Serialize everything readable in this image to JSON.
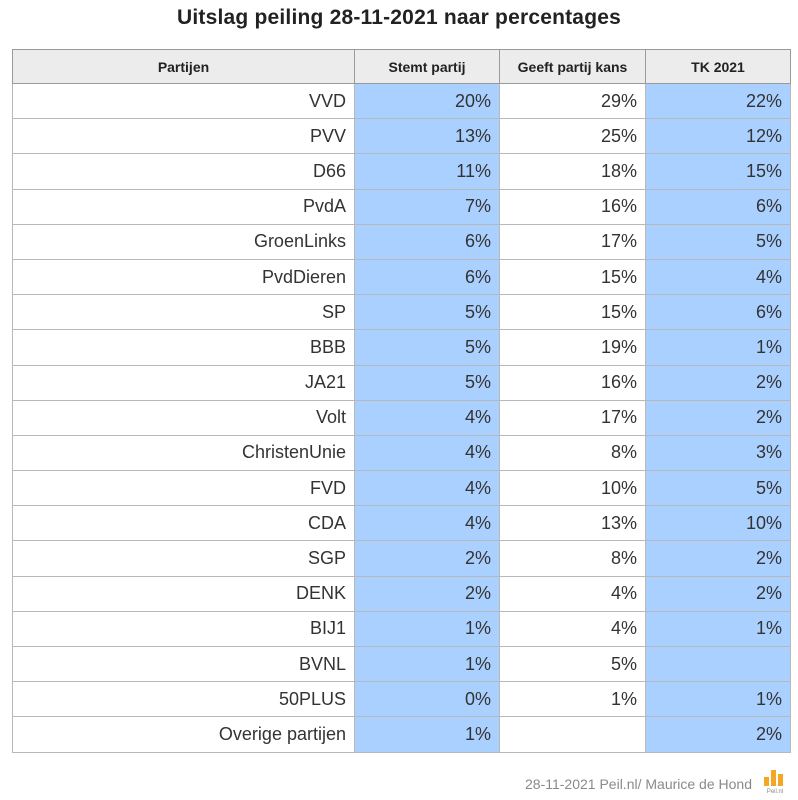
{
  "title": "Uitslag peiling 28-11-2021 naar percentages",
  "footer": "28-11-2021 Peil.nl/ Maurice de Hond",
  "logo_text": "Peil.nl",
  "colors": {
    "highlight_column": "#aad0ff",
    "header_bg": "#ececec",
    "logo": "#f5a623"
  },
  "chart_data": {
    "type": "table",
    "columns": [
      "Partijen",
      "Stemt partij",
      "Geeft partij kans",
      "TK 2021"
    ],
    "rows": [
      [
        "VVD",
        "20%",
        "29%",
        "22%"
      ],
      [
        "PVV",
        "13%",
        "25%",
        "12%"
      ],
      [
        "D66",
        "11%",
        "18%",
        "15%"
      ],
      [
        "PvdA",
        "7%",
        "16%",
        "6%"
      ],
      [
        "GroenLinks",
        "6%",
        "17%",
        "5%"
      ],
      [
        "PvdDieren",
        "6%",
        "15%",
        "4%"
      ],
      [
        "SP",
        "5%",
        "15%",
        "6%"
      ],
      [
        "BBB",
        "5%",
        "19%",
        "1%"
      ],
      [
        "JA21",
        "5%",
        "16%",
        "2%"
      ],
      [
        "Volt",
        "4%",
        "17%",
        "2%"
      ],
      [
        "ChristenUnie",
        "4%",
        "8%",
        "3%"
      ],
      [
        "FVD",
        "4%",
        "10%",
        "5%"
      ],
      [
        "CDA",
        "4%",
        "13%",
        "10%"
      ],
      [
        "SGP",
        "2%",
        "8%",
        "2%"
      ],
      [
        "DENK",
        "2%",
        "4%",
        "2%"
      ],
      [
        "BIJ1",
        "1%",
        "4%",
        "1%"
      ],
      [
        "BVNL",
        "1%",
        "5%",
        ""
      ],
      [
        "50PLUS",
        "0%",
        "1%",
        "1%"
      ],
      [
        "Overige partijen",
        "1%",
        "",
        "2%"
      ]
    ]
  }
}
